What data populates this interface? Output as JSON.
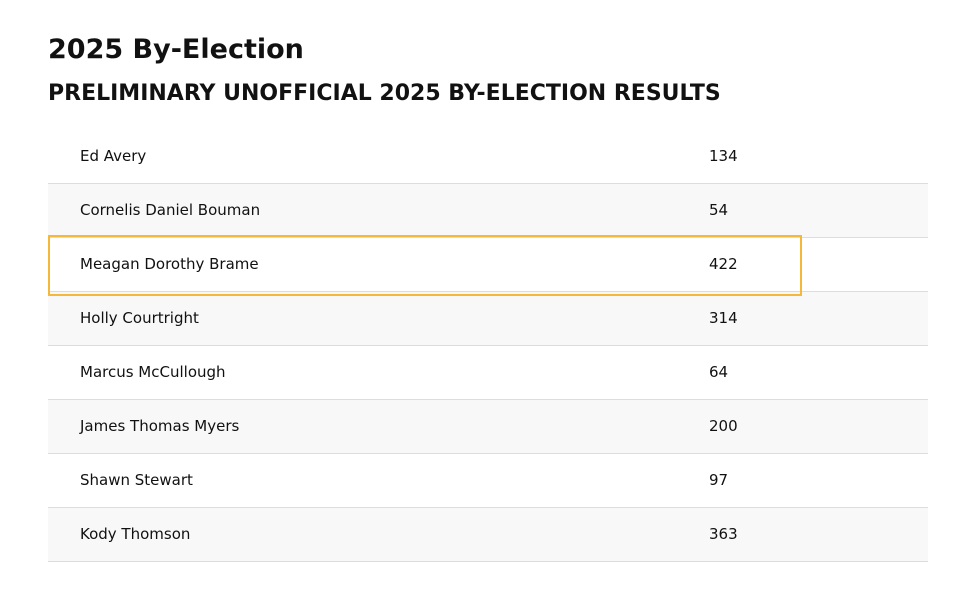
{
  "header": {
    "title": "2025 By-Election",
    "subtitle": "PRELIMINARY UNOFFICIAL 2025 BY-ELECTION RESULTS"
  },
  "table": {
    "rows": [
      [
        "Ed Avery",
        134
      ],
      [
        "Cornelis Daniel Bouman",
        54
      ],
      [
        "Meagan Dorothy Brame",
        422
      ],
      [
        "Holly Courtright",
        314
      ],
      [
        "Marcus McCullough",
        64
      ],
      [
        "James Thomas Myers",
        200
      ],
      [
        "Shawn Stewart",
        97
      ],
      [
        "Kody Thomson",
        363
      ]
    ],
    "highlighted_row": 2
  }
}
